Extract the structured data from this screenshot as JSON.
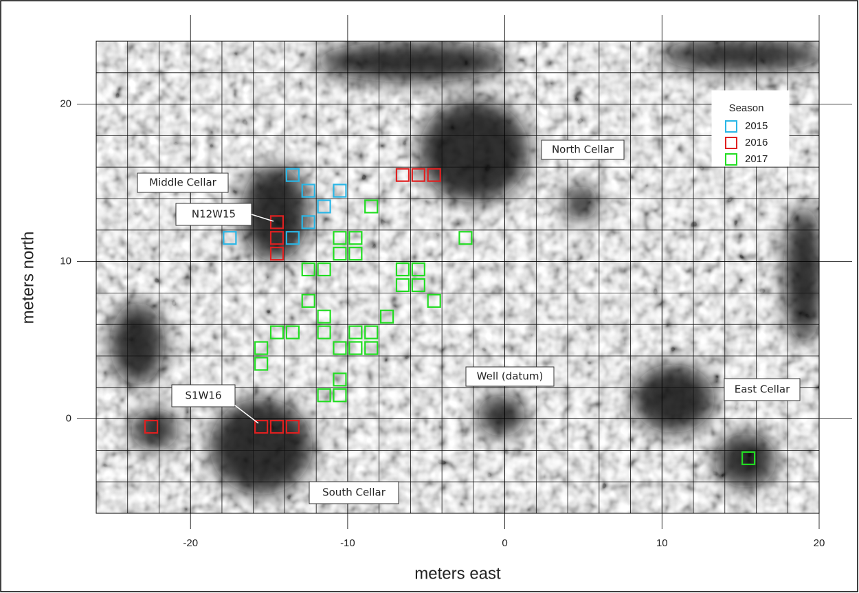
{
  "chart_data": {
    "type": "scatter",
    "x_label": "meters east",
    "y_label": "meters north",
    "xlim": [
      -26,
      20
    ],
    "ylim": [
      -6,
      24
    ],
    "xticks": [
      -20,
      -10,
      0,
      10,
      20
    ],
    "yticks": [
      0,
      10,
      20
    ],
    "xgrid": [
      -24,
      -22,
      -20,
      -18,
      -16,
      -14,
      -12,
      -10,
      -8,
      -6,
      -4,
      -2,
      0,
      2,
      4,
      6,
      8,
      10,
      12,
      14,
      16,
      18
    ],
    "ygrid": [
      -4,
      -2,
      0,
      2,
      4,
      6,
      8,
      10,
      12,
      14,
      16,
      18,
      20,
      22
    ],
    "grid": true,
    "marker": "square",
    "legend": {
      "title": "Season",
      "position": "upper right"
    },
    "series": [
      {
        "name": "2015",
        "color": "#29b6e6",
        "x": [
          -13.5,
          -12.5,
          -11.5,
          -10.5,
          -12.5,
          -13.5,
          -17.5
        ],
        "y": [
          15.5,
          14.5,
          13.5,
          14.5,
          12.5,
          11.5,
          11.5
        ]
      },
      {
        "name": "2016",
        "color": "#e02020",
        "x": [
          -14.5,
          -14.5,
          -14.5,
          -6.5,
          -5.5,
          -4.5,
          -22.5,
          -15.5,
          -14.5,
          -13.5
        ],
        "y": [
          12.5,
          11.5,
          10.5,
          15.5,
          15.5,
          15.5,
          -0.5,
          -0.5,
          -0.5,
          -0.5
        ]
      },
      {
        "name": "2017",
        "color": "#22dd22",
        "x": [
          -8.5,
          -2.5,
          -10.5,
          -9.5,
          -10.5,
          -9.5,
          -12.5,
          -11.5,
          -6.5,
          -5.5,
          -6.5,
          -5.5,
          -4.5,
          -12.5,
          -11.5,
          -11.5,
          -7.5,
          -14.5,
          -13.5,
          -15.5,
          -15.5,
          -10.5,
          -9.5,
          -8.5,
          -9.5,
          -8.5,
          -10.5,
          -11.5,
          -10.5,
          15.5
        ],
        "y": [
          13.5,
          11.5,
          11.5,
          11.5,
          10.5,
          10.5,
          9.5,
          9.5,
          9.5,
          9.5,
          8.5,
          8.5,
          7.5,
          7.5,
          6.5,
          5.5,
          6.5,
          5.5,
          5.5,
          4.5,
          3.5,
          4.5,
          4.5,
          4.5,
          5.5,
          5.5,
          2.5,
          1.5,
          1.5,
          -2.5
        ]
      }
    ],
    "annotations": [
      "Middle Cellar",
      "North Cellar",
      "N12W15",
      "S1W16",
      "Well (datum)",
      "East Cellar",
      "South Cellar"
    ]
  }
}
